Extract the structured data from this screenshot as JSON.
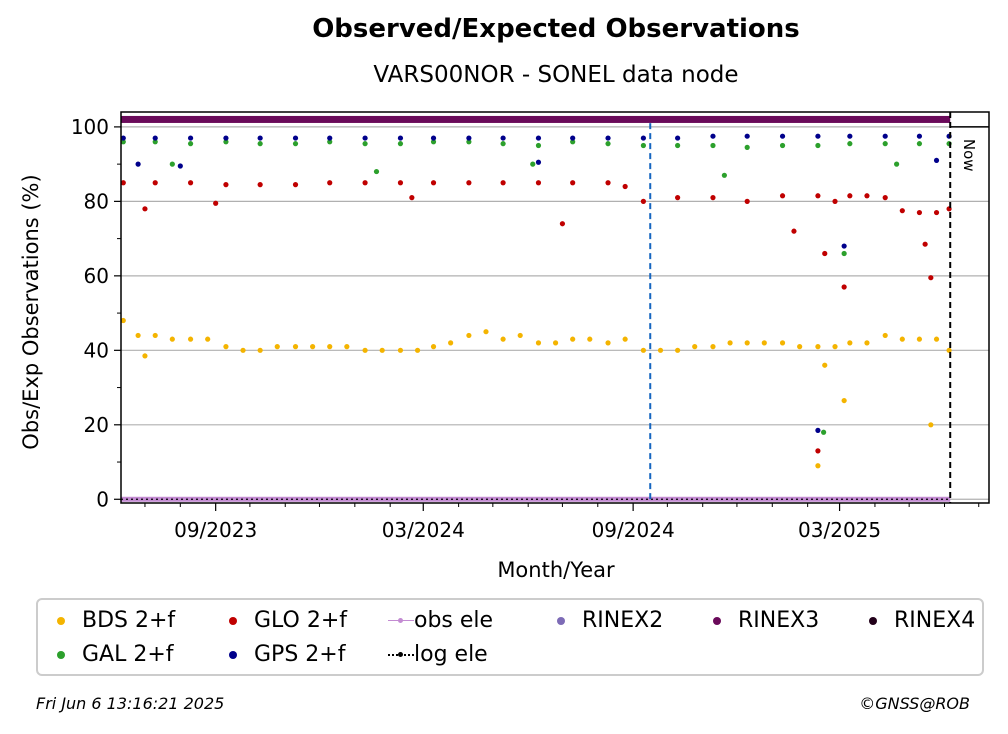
{
  "chart_data": {
    "type": "scatter",
    "title": "Observed/Expected Observations",
    "subtitle": "VARS00NOR - SONEL data node",
    "xlabel": "Month/Year",
    "ylabel": "Obs/Exp Observations (%)",
    "ylim": [
      -1,
      104
    ],
    "xlim": [
      "2023-06-10",
      "2025-07-10"
    ],
    "x_ticks": [
      "09/2023",
      "03/2024",
      "09/2024",
      "03/2025"
    ],
    "x_tick_dates": [
      "2023-09-01",
      "2024-03-01",
      "2024-09-01",
      "2025-03-01"
    ],
    "y_ticks": [
      0,
      20,
      40,
      60,
      80,
      100
    ],
    "grid": true,
    "legend_position": "below",
    "now_date": "2025-06-06",
    "now_label": "Now",
    "event_date": "2024-09-16",
    "series": [
      {
        "name": "BDS 2+f",
        "color": "#f4b400",
        "kind": "points",
        "x": [
          "2023-06-12",
          "2023-06-25",
          "2023-07-10",
          "2023-07-25",
          "2023-08-10",
          "2023-08-25",
          "2023-09-10",
          "2023-09-25",
          "2023-10-10",
          "2023-10-25",
          "2023-11-10",
          "2023-11-25",
          "2023-12-10",
          "2023-12-25",
          "2024-01-10",
          "2024-01-25",
          "2024-02-10",
          "2024-02-25",
          "2024-03-10",
          "2024-03-25",
          "2024-04-10",
          "2024-04-25",
          "2024-05-10",
          "2024-05-25",
          "2024-06-10",
          "2024-06-25",
          "2024-07-10",
          "2024-07-25",
          "2024-08-10",
          "2024-08-25",
          "2024-09-10",
          "2024-09-25",
          "2024-10-10",
          "2024-10-25",
          "2024-11-10",
          "2024-11-25",
          "2024-12-10",
          "2024-12-25",
          "2025-01-10",
          "2025-01-25",
          "2025-02-10",
          "2025-02-25",
          "2025-03-10",
          "2025-03-25",
          "2025-04-10",
          "2025-04-25",
          "2025-05-10",
          "2025-05-25",
          "2025-06-05",
          "2023-07-01",
          "2025-02-10",
          "2025-02-16",
          "2025-03-05",
          "2025-05-20"
        ],
        "y": [
          48,
          44,
          44,
          43,
          43,
          43,
          41,
          40,
          40,
          41,
          41,
          41,
          41,
          41,
          40,
          40,
          40,
          40,
          41,
          42,
          44,
          45,
          43,
          44,
          42,
          42,
          43,
          43,
          42,
          43,
          40,
          40,
          40,
          41,
          41,
          42,
          42,
          42,
          42,
          41,
          41,
          41,
          42,
          42,
          44,
          43,
          43,
          43,
          40,
          38.5,
          9,
          36,
          26.5,
          20
        ]
      },
      {
        "name": "GAL 2+f",
        "color": "#2ca02c",
        "kind": "points",
        "x": [
          "2023-06-12",
          "2023-07-10",
          "2023-08-10",
          "2023-09-10",
          "2023-10-10",
          "2023-11-10",
          "2023-12-10",
          "2024-01-10",
          "2024-02-10",
          "2024-03-10",
          "2024-04-10",
          "2024-05-10",
          "2024-06-10",
          "2024-07-10",
          "2024-08-10",
          "2024-09-10",
          "2024-10-10",
          "2024-11-10",
          "2024-12-10",
          "2025-01-10",
          "2025-02-10",
          "2025-03-10",
          "2025-04-10",
          "2025-05-10",
          "2025-06-05",
          "2023-07-25",
          "2024-01-20",
          "2024-06-05",
          "2024-11-20",
          "2025-02-15",
          "2025-03-05",
          "2025-04-20"
        ],
        "y": [
          96,
          96,
          95.5,
          96,
          95.5,
          95.5,
          96,
          95.5,
          95.5,
          96,
          96,
          95.5,
          95,
          96,
          95.5,
          95,
          95,
          95,
          94.5,
          95,
          95,
          95.5,
          95.5,
          95.5,
          95.5,
          90,
          88,
          90,
          87,
          18,
          66,
          90
        ]
      },
      {
        "name": "GLO 2+f",
        "color": "#c00000",
        "kind": "points",
        "x": [
          "2023-06-12",
          "2023-07-10",
          "2023-08-10",
          "2023-09-10",
          "2023-10-10",
          "2023-11-10",
          "2023-12-10",
          "2024-01-10",
          "2024-02-10",
          "2024-03-10",
          "2024-04-10",
          "2024-05-10",
          "2024-06-10",
          "2024-07-10",
          "2024-08-10",
          "2024-08-25",
          "2024-09-10",
          "2024-10-10",
          "2024-11-10",
          "2024-12-10",
          "2025-01-10",
          "2025-02-10",
          "2025-02-25",
          "2025-03-10",
          "2025-03-25",
          "2025-04-10",
          "2025-04-25",
          "2025-05-10",
          "2025-05-25",
          "2025-06-05",
          "2023-07-01",
          "2023-09-01",
          "2024-02-20",
          "2024-07-01",
          "2025-01-20",
          "2025-02-10",
          "2025-02-16",
          "2025-03-05",
          "2025-05-15",
          "2025-05-20"
        ],
        "y": [
          85,
          85,
          85,
          84.5,
          84.5,
          84.5,
          85,
          85,
          85,
          85,
          85,
          85,
          85,
          85,
          85,
          84,
          80,
          81,
          81,
          80,
          81.5,
          81.5,
          80,
          81.5,
          81.5,
          81,
          77.5,
          77,
          77,
          78,
          78,
          79.5,
          81,
          74,
          72,
          13,
          66,
          57,
          68.5,
          59.5
        ]
      },
      {
        "name": "GPS 2+f",
        "color": "#00008b",
        "kind": "points",
        "x": [
          "2023-06-12",
          "2023-07-10",
          "2023-08-10",
          "2023-09-10",
          "2023-10-10",
          "2023-11-10",
          "2023-12-10",
          "2024-01-10",
          "2024-02-10",
          "2024-03-10",
          "2024-04-10",
          "2024-05-10",
          "2024-06-10",
          "2024-07-10",
          "2024-08-10",
          "2024-09-10",
          "2024-10-10",
          "2024-11-10",
          "2024-12-10",
          "2025-01-10",
          "2025-02-10",
          "2025-03-10",
          "2025-04-10",
          "2025-05-10",
          "2025-06-05",
          "2023-06-25",
          "2023-08-01",
          "2024-06-10",
          "2025-02-10",
          "2025-03-05",
          "2025-05-25"
        ],
        "y": [
          97,
          97,
          97,
          97,
          97,
          97,
          97,
          97,
          97,
          97,
          97,
          97,
          97,
          97,
          97,
          97,
          97,
          97.5,
          97.5,
          97.5,
          97.5,
          97.5,
          97.5,
          97.5,
          97.5,
          90,
          89.5,
          90.5,
          18.5,
          68,
          91
        ]
      },
      {
        "name": "obs ele",
        "color": "#c38bd2",
        "kind": "line"
      },
      {
        "name": "RINEX2",
        "color": "#7d6bb6",
        "kind": "points"
      },
      {
        "name": "RINEX3",
        "color": "#6a0a5a",
        "kind": "points",
        "band_value": 102
      },
      {
        "name": "RINEX4",
        "color": "#22001a",
        "kind": "points"
      },
      {
        "name": "log ele",
        "color": "#000000",
        "kind": "line"
      }
    ]
  },
  "footer": {
    "timestamp": "Fri Jun  6 13:16:21 2025",
    "credit": "©GNSS@ROB"
  }
}
